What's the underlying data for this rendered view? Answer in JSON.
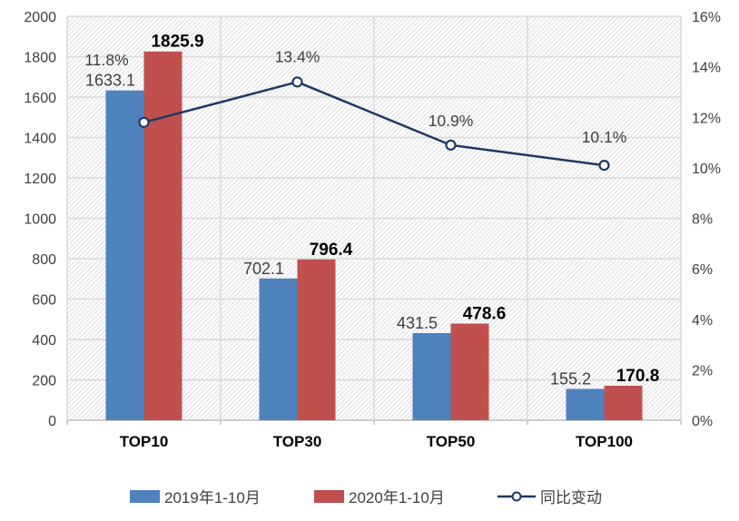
{
  "chart_data": {
    "type": "combo",
    "categories": [
      "TOP10",
      "TOP30",
      "TOP50",
      "TOP100"
    ],
    "series": [
      {
        "name": "2019年1-10月",
        "type": "bar",
        "axis": "left",
        "color": "#4F81BD",
        "values": [
          1633.1,
          702.1,
          431.5,
          155.2
        ],
        "labels": [
          "1633.1",
          "702.1",
          "431.5",
          "155.2"
        ]
      },
      {
        "name": "2020年1-10月",
        "type": "bar",
        "axis": "left",
        "color": "#C0504D",
        "values": [
          1825.9,
          796.4,
          478.6,
          170.8
        ],
        "labels": [
          "1825.9",
          "796.4",
          "478.6",
          "170.8"
        ]
      },
      {
        "name": "同比变动",
        "type": "line",
        "axis": "right",
        "color": "#1F3864",
        "values": [
          11.8,
          13.4,
          10.9,
          10.1
        ],
        "labels": [
          "11.8%",
          "13.4%",
          "10.9%",
          "10.1%"
        ]
      }
    ],
    "left_axis": {
      "min": 0,
      "max": 2000,
      "step": 200,
      "tick_labels": [
        "0",
        "200",
        "400",
        "600",
        "800",
        "1000",
        "1200",
        "1400",
        "1600",
        "1800",
        "2000"
      ]
    },
    "right_axis": {
      "min": 0,
      "max": 16,
      "step": 2,
      "tick_labels": [
        "0%",
        "2%",
        "4%",
        "6%",
        "8%",
        "10%",
        "12%",
        "14%",
        "16%"
      ]
    },
    "grid": true,
    "legend_position": "bottom",
    "plot_background": "diagonal-hatch"
  },
  "legend": {
    "items": [
      {
        "label": "2019年1-10月",
        "swatch": "blue-rect"
      },
      {
        "label": "2020年1-10月",
        "swatch": "red-rect"
      },
      {
        "label": "同比变动",
        "swatch": "line-marker"
      }
    ]
  },
  "colors": {
    "bar_2019": "#4F81BD",
    "bar_2020": "#C0504D",
    "line": "#1F3864",
    "grid": "#D9D9D9",
    "axis_line": "#BFBFBF",
    "hatch": "#E1E1E1",
    "axis_text": "#404040",
    "bold_label": "#000000"
  }
}
